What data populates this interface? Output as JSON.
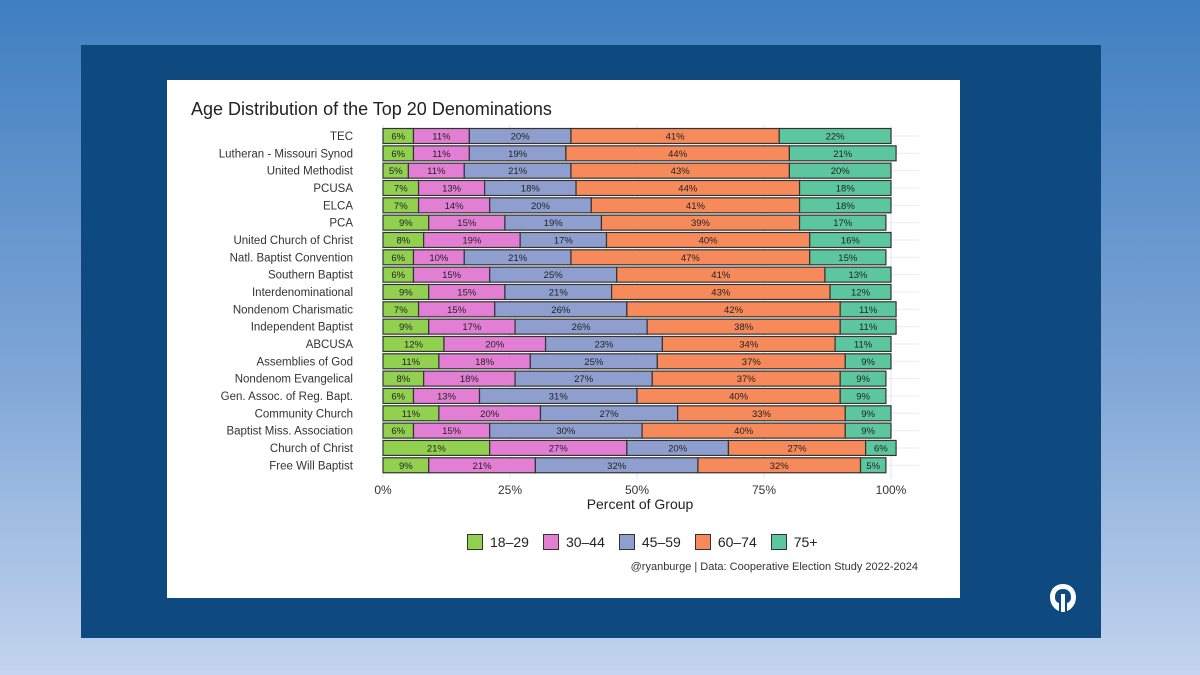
{
  "slide": {
    "background": "#4a86c5",
    "frame_color": "#0e4a80"
  },
  "chart_data": {
    "type": "bar",
    "orientation": "horizontal",
    "stacked": true,
    "title": "Age Distribution of the Top 20 Denominations",
    "xlabel": "Percent of Group",
    "ylabel": "",
    "xlim": [
      0,
      100
    ],
    "x_ticks": [
      "0%",
      "25%",
      "50%",
      "75%",
      "100%"
    ],
    "grid": true,
    "legend_position": "bottom",
    "colors": [
      "#92d050",
      "#e27fd4",
      "#8e9fcf",
      "#f78a5a",
      "#5cc79e"
    ],
    "categories": [
      "TEC",
      "Lutheran - Missouri Synod",
      "United Methodist",
      "PCUSA",
      "ELCA",
      "PCA",
      "United Church of Christ",
      "Natl. Baptist Convention",
      "Southern Baptist",
      "Interdenominational",
      "Nondenom Charismatic",
      "Independent Baptist",
      "ABCUSA",
      "Assemblies of God",
      "Nondenom Evangelical",
      "Gen. Assoc. of Reg. Bapt.",
      "Community Church",
      "Baptist Miss. Association",
      "Church of Christ",
      "Free Will Baptist"
    ],
    "series": [
      {
        "name": "18–29",
        "values": [
          6,
          6,
          5,
          7,
          7,
          9,
          8,
          6,
          6,
          9,
          7,
          9,
          12,
          11,
          8,
          6,
          11,
          6,
          21,
          9
        ]
      },
      {
        "name": "30–44",
        "values": [
          11,
          11,
          11,
          13,
          14,
          15,
          19,
          10,
          15,
          15,
          15,
          17,
          20,
          18,
          18,
          13,
          20,
          15,
          27,
          21
        ]
      },
      {
        "name": "45–59",
        "values": [
          20,
          19,
          21,
          18,
          20,
          19,
          17,
          21,
          25,
          21,
          26,
          26,
          23,
          25,
          27,
          31,
          27,
          30,
          20,
          32
        ]
      },
      {
        "name": "60–74",
        "values": [
          41,
          44,
          43,
          44,
          41,
          39,
          40,
          47,
          41,
          43,
          42,
          38,
          34,
          37,
          37,
          40,
          33,
          40,
          27,
          32
        ]
      },
      {
        "name": "75+",
        "values": [
          22,
          21,
          20,
          18,
          18,
          17,
          16,
          15,
          13,
          12,
          11,
          11,
          11,
          9,
          9,
          9,
          9,
          9,
          6,
          5
        ]
      }
    ],
    "caption": "@ryanburge | Data: Cooperative Election Study 2022-2024"
  }
}
